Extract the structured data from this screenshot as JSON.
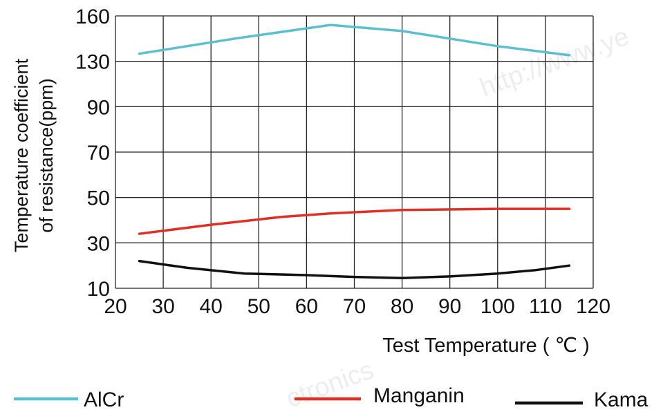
{
  "chart_data": {
    "type": "line",
    "xlabel": "Test Temperature ( ℃ )",
    "ylabel_lines": [
      "Temperature coefficient",
      "of resistance(ppm)"
    ],
    "x_ticks": [
      20,
      30,
      40,
      50,
      60,
      70,
      80,
      90,
      100,
      110,
      120
    ],
    "y_ticks": [
      10,
      30,
      50,
      70,
      90,
      130,
      160
    ],
    "xlim": [
      20,
      120
    ],
    "grid": true,
    "legend_position": "bottom",
    "series": [
      {
        "name": "AlCr",
        "color": "#5bbfd0",
        "x": [
          25,
          45,
          65,
          80,
          100,
          115
        ],
        "y": [
          135,
          145,
          154,
          150,
          140,
          134
        ]
      },
      {
        "name": "Manganin",
        "color": "#e03025",
        "x": [
          25,
          40,
          55,
          65,
          80,
          100,
          115
        ],
        "y": [
          34,
          38,
          41.5,
          43,
          44.5,
          45,
          45
        ]
      },
      {
        "name": "Kama",
        "color": "#111111",
        "x": [
          25,
          35,
          47,
          60,
          70,
          80,
          90,
          100,
          108,
          115
        ],
        "y": [
          22,
          19,
          16.5,
          15.8,
          15,
          14.5,
          15.2,
          16.5,
          18,
          20
        ]
      }
    ]
  },
  "watermarks": [
    "http://www.ye",
    "ctronics"
  ]
}
